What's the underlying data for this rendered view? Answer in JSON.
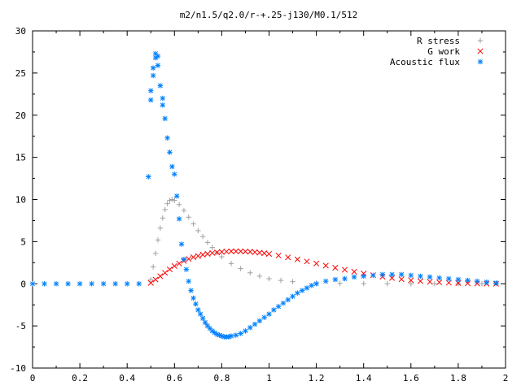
{
  "chart_data": {
    "type": "scatter",
    "title": "m2/n1.5/q2.0/r-+.25-j130/M0.1/512",
    "xlabel": "",
    "ylabel": "",
    "xlim": [
      0,
      2
    ],
    "ylim": [
      -10,
      30
    ],
    "x_ticks": [
      "0",
      "0.2",
      "0.4",
      "0.6",
      "0.8",
      "1",
      "1.2",
      "1.4",
      "1.6",
      "1.8",
      "2"
    ],
    "y_ticks": [
      "-10",
      "-5",
      "0",
      "5",
      "10",
      "15",
      "20",
      "25",
      "30"
    ],
    "grid": false,
    "legend_position": "top-right",
    "series": [
      {
        "name": "R stress",
        "marker": "plus",
        "color": "#a0a0a0",
        "points": [
          [
            0.5,
            0.5
          ],
          [
            0.51,
            2.0
          ],
          [
            0.52,
            3.6
          ],
          [
            0.53,
            5.2
          ],
          [
            0.54,
            6.6
          ],
          [
            0.55,
            7.8
          ],
          [
            0.56,
            8.8
          ],
          [
            0.57,
            9.5
          ],
          [
            0.58,
            9.9
          ],
          [
            0.59,
            10.0
          ],
          [
            0.6,
            9.9
          ],
          [
            0.62,
            9.4
          ],
          [
            0.64,
            8.7
          ],
          [
            0.66,
            7.9
          ],
          [
            0.68,
            7.1
          ],
          [
            0.7,
            6.3
          ],
          [
            0.72,
            5.6
          ],
          [
            0.74,
            4.9
          ],
          [
            0.76,
            4.3
          ],
          [
            0.78,
            3.7
          ],
          [
            0.8,
            3.2
          ],
          [
            0.84,
            2.4
          ],
          [
            0.88,
            1.8
          ],
          [
            0.92,
            1.3
          ],
          [
            0.96,
            0.9
          ],
          [
            1.0,
            0.6
          ],
          [
            1.05,
            0.4
          ],
          [
            1.1,
            0.25
          ],
          [
            1.2,
            0.1
          ],
          [
            1.3,
            0.05
          ],
          [
            1.4,
            0.02
          ],
          [
            1.5,
            0.01
          ],
          [
            1.6,
            0.0
          ],
          [
            1.7,
            0.0
          ],
          [
            1.8,
            0.0
          ],
          [
            1.9,
            0.0
          ],
          [
            1.96,
            0.0
          ]
        ]
      },
      {
        "name": "G work",
        "marker": "cross",
        "color": "#ff0000",
        "points": [
          [
            0.5,
            0.1
          ],
          [
            0.52,
            0.5
          ],
          [
            0.54,
            0.9
          ],
          [
            0.56,
            1.3
          ],
          [
            0.58,
            1.7
          ],
          [
            0.6,
            2.1
          ],
          [
            0.62,
            2.4
          ],
          [
            0.64,
            2.7
          ],
          [
            0.66,
            2.95
          ],
          [
            0.68,
            3.15
          ],
          [
            0.7,
            3.3
          ],
          [
            0.72,
            3.45
          ],
          [
            0.74,
            3.55
          ],
          [
            0.76,
            3.65
          ],
          [
            0.78,
            3.72
          ],
          [
            0.8,
            3.78
          ],
          [
            0.82,
            3.82
          ],
          [
            0.84,
            3.85
          ],
          [
            0.86,
            3.85
          ],
          [
            0.88,
            3.85
          ],
          [
            0.9,
            3.83
          ],
          [
            0.92,
            3.8
          ],
          [
            0.94,
            3.75
          ],
          [
            0.96,
            3.69
          ],
          [
            0.98,
            3.62
          ],
          [
            1.0,
            3.54
          ],
          [
            1.04,
            3.35
          ],
          [
            1.08,
            3.13
          ],
          [
            1.12,
            2.9
          ],
          [
            1.16,
            2.65
          ],
          [
            1.2,
            2.4
          ],
          [
            1.24,
            2.15
          ],
          [
            1.28,
            1.9
          ],
          [
            1.32,
            1.66
          ],
          [
            1.36,
            1.43
          ],
          [
            1.4,
            1.22
          ],
          [
            1.44,
            1.02
          ],
          [
            1.48,
            0.84
          ],
          [
            1.52,
            0.68
          ],
          [
            1.56,
            0.54
          ],
          [
            1.6,
            0.42
          ],
          [
            1.64,
            0.32
          ],
          [
            1.68,
            0.24
          ],
          [
            1.72,
            0.17
          ],
          [
            1.76,
            0.12
          ],
          [
            1.8,
            0.08
          ],
          [
            1.84,
            0.05
          ],
          [
            1.88,
            0.03
          ],
          [
            1.92,
            0.01
          ],
          [
            1.96,
            0.0
          ]
        ]
      },
      {
        "name": "Acoustic flux",
        "marker": "star",
        "color": "#0080ff",
        "points": [
          [
            0.0,
            0.0
          ],
          [
            0.05,
            0.0
          ],
          [
            0.1,
            0.0
          ],
          [
            0.15,
            0.0
          ],
          [
            0.2,
            0.0
          ],
          [
            0.25,
            0.0
          ],
          [
            0.3,
            0.0
          ],
          [
            0.35,
            0.0
          ],
          [
            0.4,
            0.0
          ],
          [
            0.45,
            0.0
          ],
          [
            0.49,
            12.7
          ],
          [
            0.5,
            21.8
          ],
          [
            0.5,
            22.9
          ],
          [
            0.51,
            24.7
          ],
          [
            0.51,
            25.6
          ],
          [
            0.52,
            26.8
          ],
          [
            0.52,
            27.3
          ],
          [
            0.53,
            27.0
          ],
          [
            0.53,
            25.9
          ],
          [
            0.54,
            23.5
          ],
          [
            0.55,
            22.0
          ],
          [
            0.55,
            21.2
          ],
          [
            0.56,
            19.6
          ],
          [
            0.57,
            17.3
          ],
          [
            0.58,
            15.6
          ],
          [
            0.59,
            13.9
          ],
          [
            0.6,
            13.0
          ],
          [
            0.61,
            10.4
          ],
          [
            0.62,
            7.7
          ],
          [
            0.63,
            4.7
          ],
          [
            0.64,
            2.9
          ],
          [
            0.65,
            1.7
          ],
          [
            0.66,
            0.3
          ],
          [
            0.67,
            -0.8
          ],
          [
            0.68,
            -1.7
          ],
          [
            0.69,
            -2.4
          ],
          [
            0.7,
            -3.1
          ],
          [
            0.71,
            -3.6
          ],
          [
            0.72,
            -4.1
          ],
          [
            0.73,
            -4.6
          ],
          [
            0.74,
            -5.0
          ],
          [
            0.75,
            -5.3
          ],
          [
            0.76,
            -5.6
          ],
          [
            0.77,
            -5.8
          ],
          [
            0.78,
            -6.0
          ],
          [
            0.79,
            -6.1
          ],
          [
            0.8,
            -6.2
          ],
          [
            0.81,
            -6.3
          ],
          [
            0.82,
            -6.3
          ],
          [
            0.83,
            -6.3
          ],
          [
            0.84,
            -6.2
          ],
          [
            0.86,
            -6.1
          ],
          [
            0.88,
            -5.9
          ],
          [
            0.9,
            -5.6
          ],
          [
            0.92,
            -5.2
          ],
          [
            0.94,
            -4.8
          ],
          [
            0.96,
            -4.4
          ],
          [
            0.98,
            -4.0
          ],
          [
            1.0,
            -3.6
          ],
          [
            1.02,
            -3.1
          ],
          [
            1.04,
            -2.7
          ],
          [
            1.06,
            -2.3
          ],
          [
            1.08,
            -1.9
          ],
          [
            1.1,
            -1.5
          ],
          [
            1.12,
            -1.1
          ],
          [
            1.14,
            -0.8
          ],
          [
            1.16,
            -0.5
          ],
          [
            1.18,
            -0.2
          ],
          [
            1.2,
            0.0
          ],
          [
            1.24,
            0.3
          ],
          [
            1.28,
            0.5
          ],
          [
            1.32,
            0.6
          ],
          [
            1.36,
            0.8
          ],
          [
            1.4,
            0.9
          ],
          [
            1.44,
            1.0
          ],
          [
            1.48,
            1.1
          ],
          [
            1.52,
            1.1
          ],
          [
            1.56,
            1.1
          ],
          [
            1.6,
            1.0
          ],
          [
            1.64,
            0.9
          ],
          [
            1.68,
            0.8
          ],
          [
            1.72,
            0.7
          ],
          [
            1.76,
            0.6
          ],
          [
            1.8,
            0.5
          ],
          [
            1.84,
            0.4
          ],
          [
            1.88,
            0.3
          ],
          [
            1.92,
            0.2
          ],
          [
            1.96,
            0.1
          ]
        ]
      }
    ]
  }
}
